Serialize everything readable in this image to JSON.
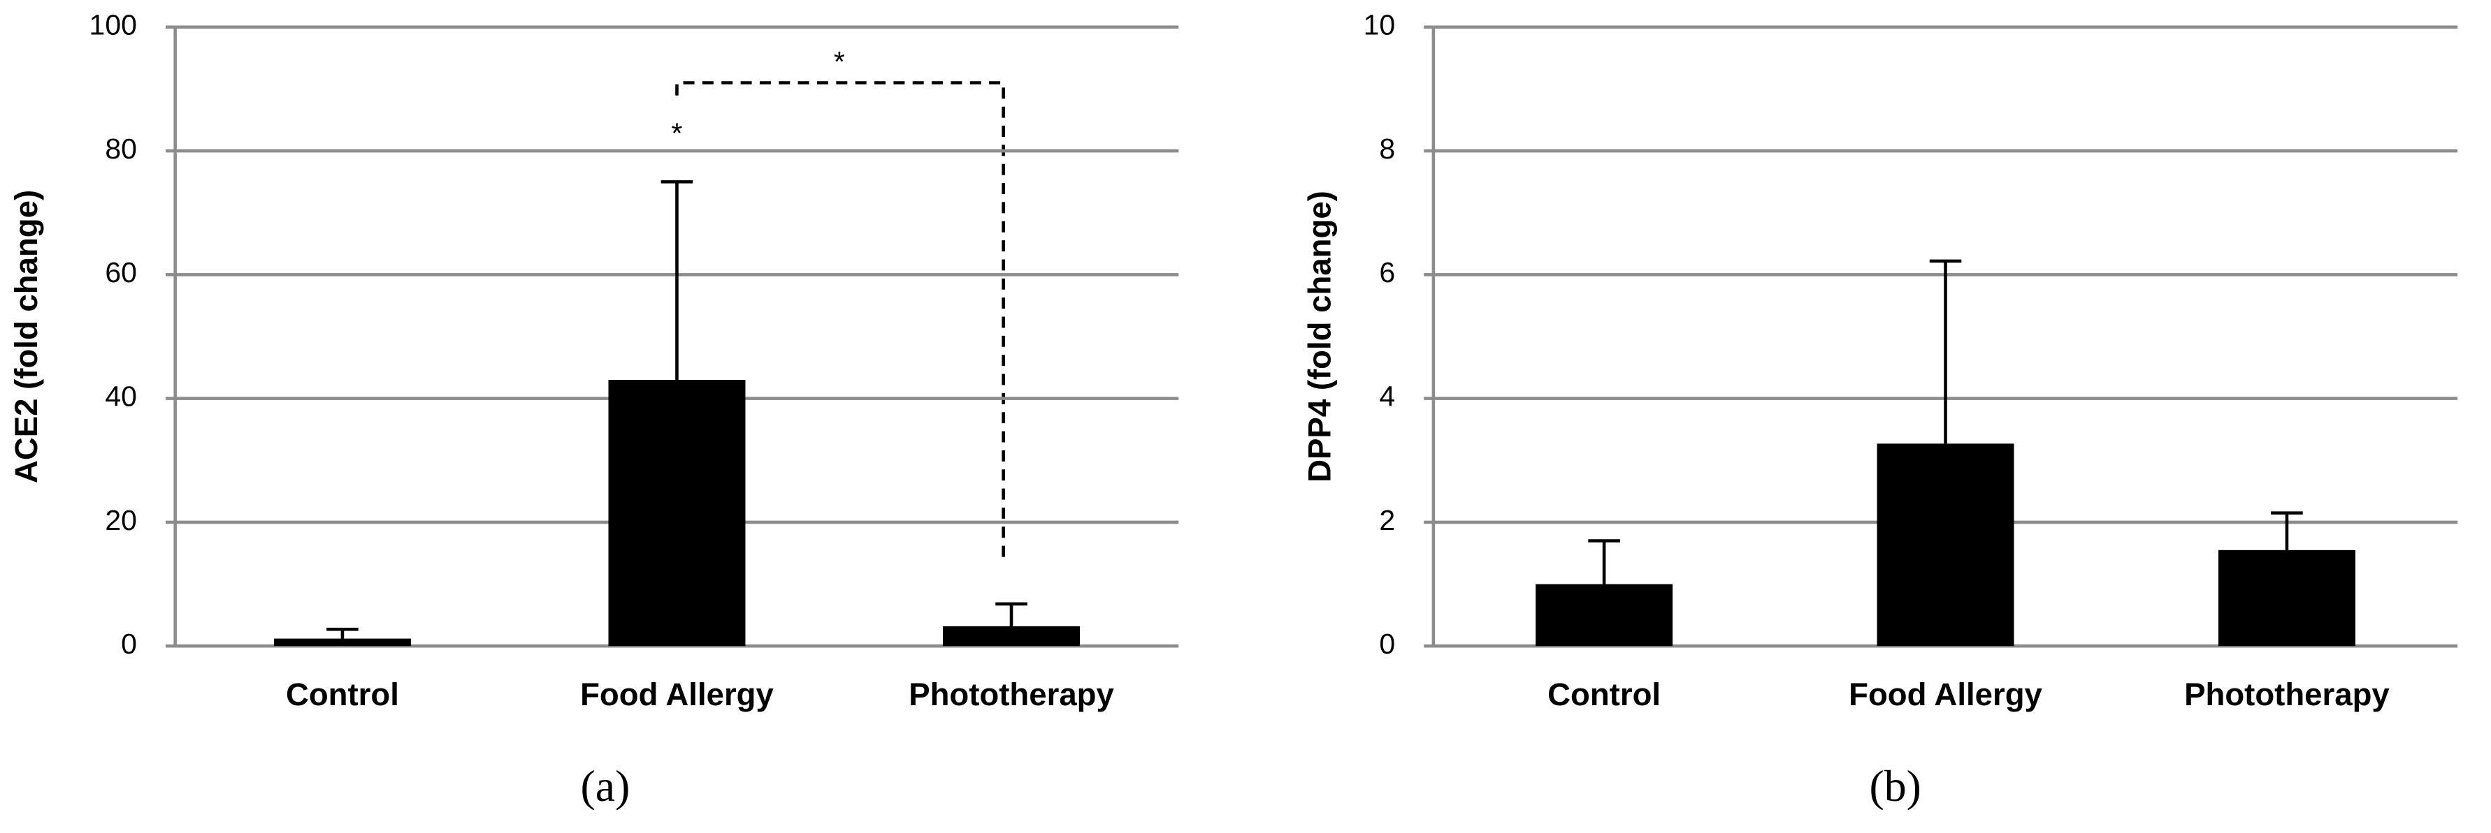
{
  "chart_data": [
    {
      "type": "bar",
      "y_label": "ACE2 (fold change)",
      "panel_label": "(a)",
      "categories": [
        "Control",
        "Food Allergy",
        "Phototherapy"
      ],
      "values": [
        1.2,
        43,
        3.2
      ],
      "errors": [
        1.5,
        32,
        3.6
      ],
      "color": "#000000",
      "ylim": [
        0,
        100
      ],
      "yticks": [
        0,
        20,
        40,
        60,
        80,
        100
      ],
      "grid": true,
      "annotations": [
        "*",
        "*"
      ]
    },
    {
      "type": "bar",
      "y_label": "DPP4 (fold change)",
      "panel_label": "(b)",
      "categories": [
        "Control",
        "Food Allergy",
        "Phototherapy"
      ],
      "values": [
        1.0,
        3.27,
        1.55
      ],
      "errors": [
        0.7,
        2.95,
        0.6
      ],
      "color": "#000000",
      "ylim": [
        0,
        10
      ],
      "yticks": [
        0,
        2,
        4,
        6,
        8,
        10
      ],
      "grid": true
    }
  ]
}
